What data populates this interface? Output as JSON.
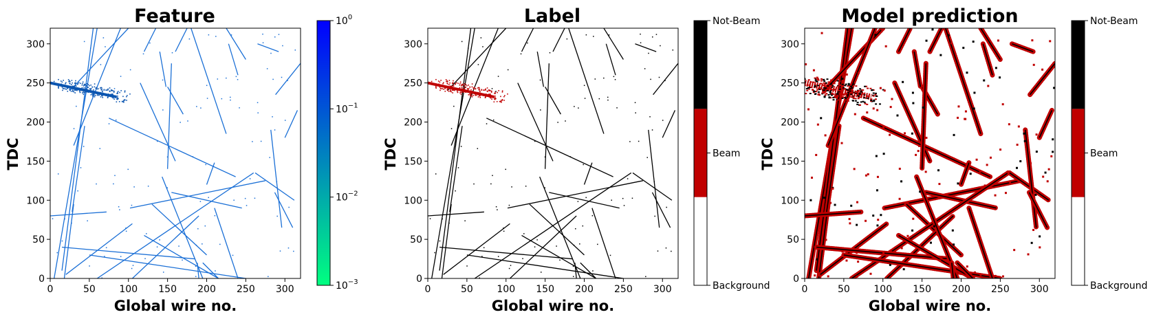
{
  "chart_data": [
    {
      "type": "heatmap",
      "title": "Feature",
      "xlabel": "Global wire no.",
      "ylabel": "TDC",
      "xlim": [
        0,
        320
      ],
      "ylim": [
        0,
        320
      ],
      "xticks": [
        0,
        50,
        100,
        150,
        200,
        250,
        300
      ],
      "yticks": [
        0,
        50,
        100,
        150,
        200,
        250,
        300
      ],
      "colorbar": {
        "scale": "log",
        "range": [
          0.001,
          1
        ],
        "ticks": [
          {
            "value": 1,
            "mantissa": "10",
            "exp": "0"
          },
          {
            "value": 0.1,
            "mantissa": "10",
            "exp": "−1"
          },
          {
            "value": 0.01,
            "mantissa": "10",
            "exp": "−2"
          },
          {
            "value": 0.001,
            "mantissa": "10",
            "exp": "−3"
          }
        ],
        "colors": [
          "#00ff80",
          "#0080c0",
          "#0000ff"
        ]
      },
      "track_color": "#1a6fd6",
      "beam_color": "#0b55b0",
      "tracks": [
        {
          "x0": 5,
          "y0": 0,
          "x1": 60,
          "y1": 320
        },
        {
          "x0": 15,
          "y0": 10,
          "x1": 55,
          "y1": 320
        },
        {
          "x0": 18,
          "y0": 0,
          "x1": 30,
          "y1": 95
        },
        {
          "x0": 28,
          "y0": 85,
          "x1": 44,
          "y1": 195
        },
        {
          "x0": 25,
          "y0": 240,
          "x1": 100,
          "y1": 320
        },
        {
          "x0": 30,
          "y0": 170,
          "x1": 90,
          "y1": 320
        },
        {
          "x0": 120,
          "y0": 290,
          "x1": 135,
          "y1": 320
        },
        {
          "x0": 115,
          "y0": 250,
          "x1": 160,
          "y1": 150
        },
        {
          "x0": 160,
          "y0": 290,
          "x1": 175,
          "y1": 320
        },
        {
          "x0": 150,
          "y0": 245,
          "x1": 170,
          "y1": 210
        },
        {
          "x0": 180,
          "y0": 320,
          "x1": 225,
          "y1": 185
        },
        {
          "x0": 225,
          "y0": 320,
          "x1": 250,
          "y1": 280
        },
        {
          "x0": 288,
          "y0": 235,
          "x1": 320,
          "y1": 275
        },
        {
          "x0": 300,
          "y0": 180,
          "x1": 316,
          "y1": 215
        },
        {
          "x0": 75,
          "y0": 205,
          "x1": 237,
          "y1": 130
        },
        {
          "x0": 155,
          "y0": 275,
          "x1": 150,
          "y1": 140
        },
        {
          "x0": 140,
          "y0": 290,
          "x1": 148,
          "y1": 245
        },
        {
          "x0": 265,
          "y0": 300,
          "x1": 292,
          "y1": 290
        },
        {
          "x0": 210,
          "y0": 148,
          "x1": 200,
          "y1": 120
        },
        {
          "x0": 0,
          "y0": 80,
          "x1": 72,
          "y1": 85
        },
        {
          "x0": 102,
          "y0": 90,
          "x1": 275,
          "y1": 125
        },
        {
          "x0": 155,
          "y0": 110,
          "x1": 245,
          "y1": 90
        },
        {
          "x0": 130,
          "y0": 95,
          "x1": 200,
          "y1": 30
        },
        {
          "x0": 20,
          "y0": 5,
          "x1": 105,
          "y1": 70
        },
        {
          "x0": 60,
          "y0": 0,
          "x1": 260,
          "y1": 135
        },
        {
          "x0": 105,
          "y0": 0,
          "x1": 190,
          "y1": 80
        },
        {
          "x0": 15,
          "y0": 40,
          "x1": 185,
          "y1": 25
        },
        {
          "x0": 50,
          "y0": 30,
          "x1": 250,
          "y1": 0
        },
        {
          "x0": 120,
          "y0": 55,
          "x1": 215,
          "y1": 0
        },
        {
          "x0": 143,
          "y0": 130,
          "x1": 195,
          "y1": 0
        },
        {
          "x0": 210,
          "y0": 90,
          "x1": 240,
          "y1": 0
        },
        {
          "x0": 188,
          "y0": 20,
          "x1": 190,
          "y1": 0
        },
        {
          "x0": 262,
          "y0": 135,
          "x1": 312,
          "y1": 100
        },
        {
          "x0": 282,
          "y0": 190,
          "x1": 296,
          "y1": 65
        },
        {
          "x0": 287,
          "y0": 110,
          "x1": 310,
          "y1": 65
        },
        {
          "x0": 228,
          "y0": 300,
          "x1": 240,
          "y1": 260
        },
        {
          "x0": 195,
          "y0": 20,
          "x1": 215,
          "y1": 0
        }
      ],
      "beam_segment": {
        "x0": 0,
        "y0": 250,
        "x1": 85,
        "y1": 232
      }
    },
    {
      "type": "heatmap",
      "title": "Label",
      "xlabel": "Global wire no.",
      "ylabel": "TDC",
      "xlim": [
        0,
        320
      ],
      "ylim": [
        0,
        320
      ],
      "xticks": [
        0,
        50,
        100,
        150,
        200,
        250,
        300
      ],
      "yticks": [
        0,
        50,
        100,
        150,
        200,
        250,
        300
      ],
      "colorbar": {
        "scale": "categorical",
        "categories": [
          "Background",
          "Beam",
          "Not-Beam"
        ],
        "colors": [
          "#ffffff",
          "#c00000",
          "#000000"
        ]
      },
      "track_color": "#000000",
      "beam_color": "#c00000"
    },
    {
      "type": "heatmap",
      "title": "Model prediction",
      "xlabel": "Global wire no.",
      "ylabel": "TDC",
      "xlim": [
        0,
        320
      ],
      "ylim": [
        0,
        320
      ],
      "xticks": [
        0,
        50,
        100,
        150,
        200,
        250,
        300
      ],
      "yticks": [
        0,
        50,
        100,
        150,
        200,
        250,
        300
      ],
      "colorbar": {
        "scale": "categorical",
        "categories": [
          "Background",
          "Beam",
          "Not-Beam"
        ],
        "colors": [
          "#ffffff",
          "#c00000",
          "#000000"
        ]
      },
      "track_color": "#000000",
      "beam_color": "#c00000"
    }
  ]
}
